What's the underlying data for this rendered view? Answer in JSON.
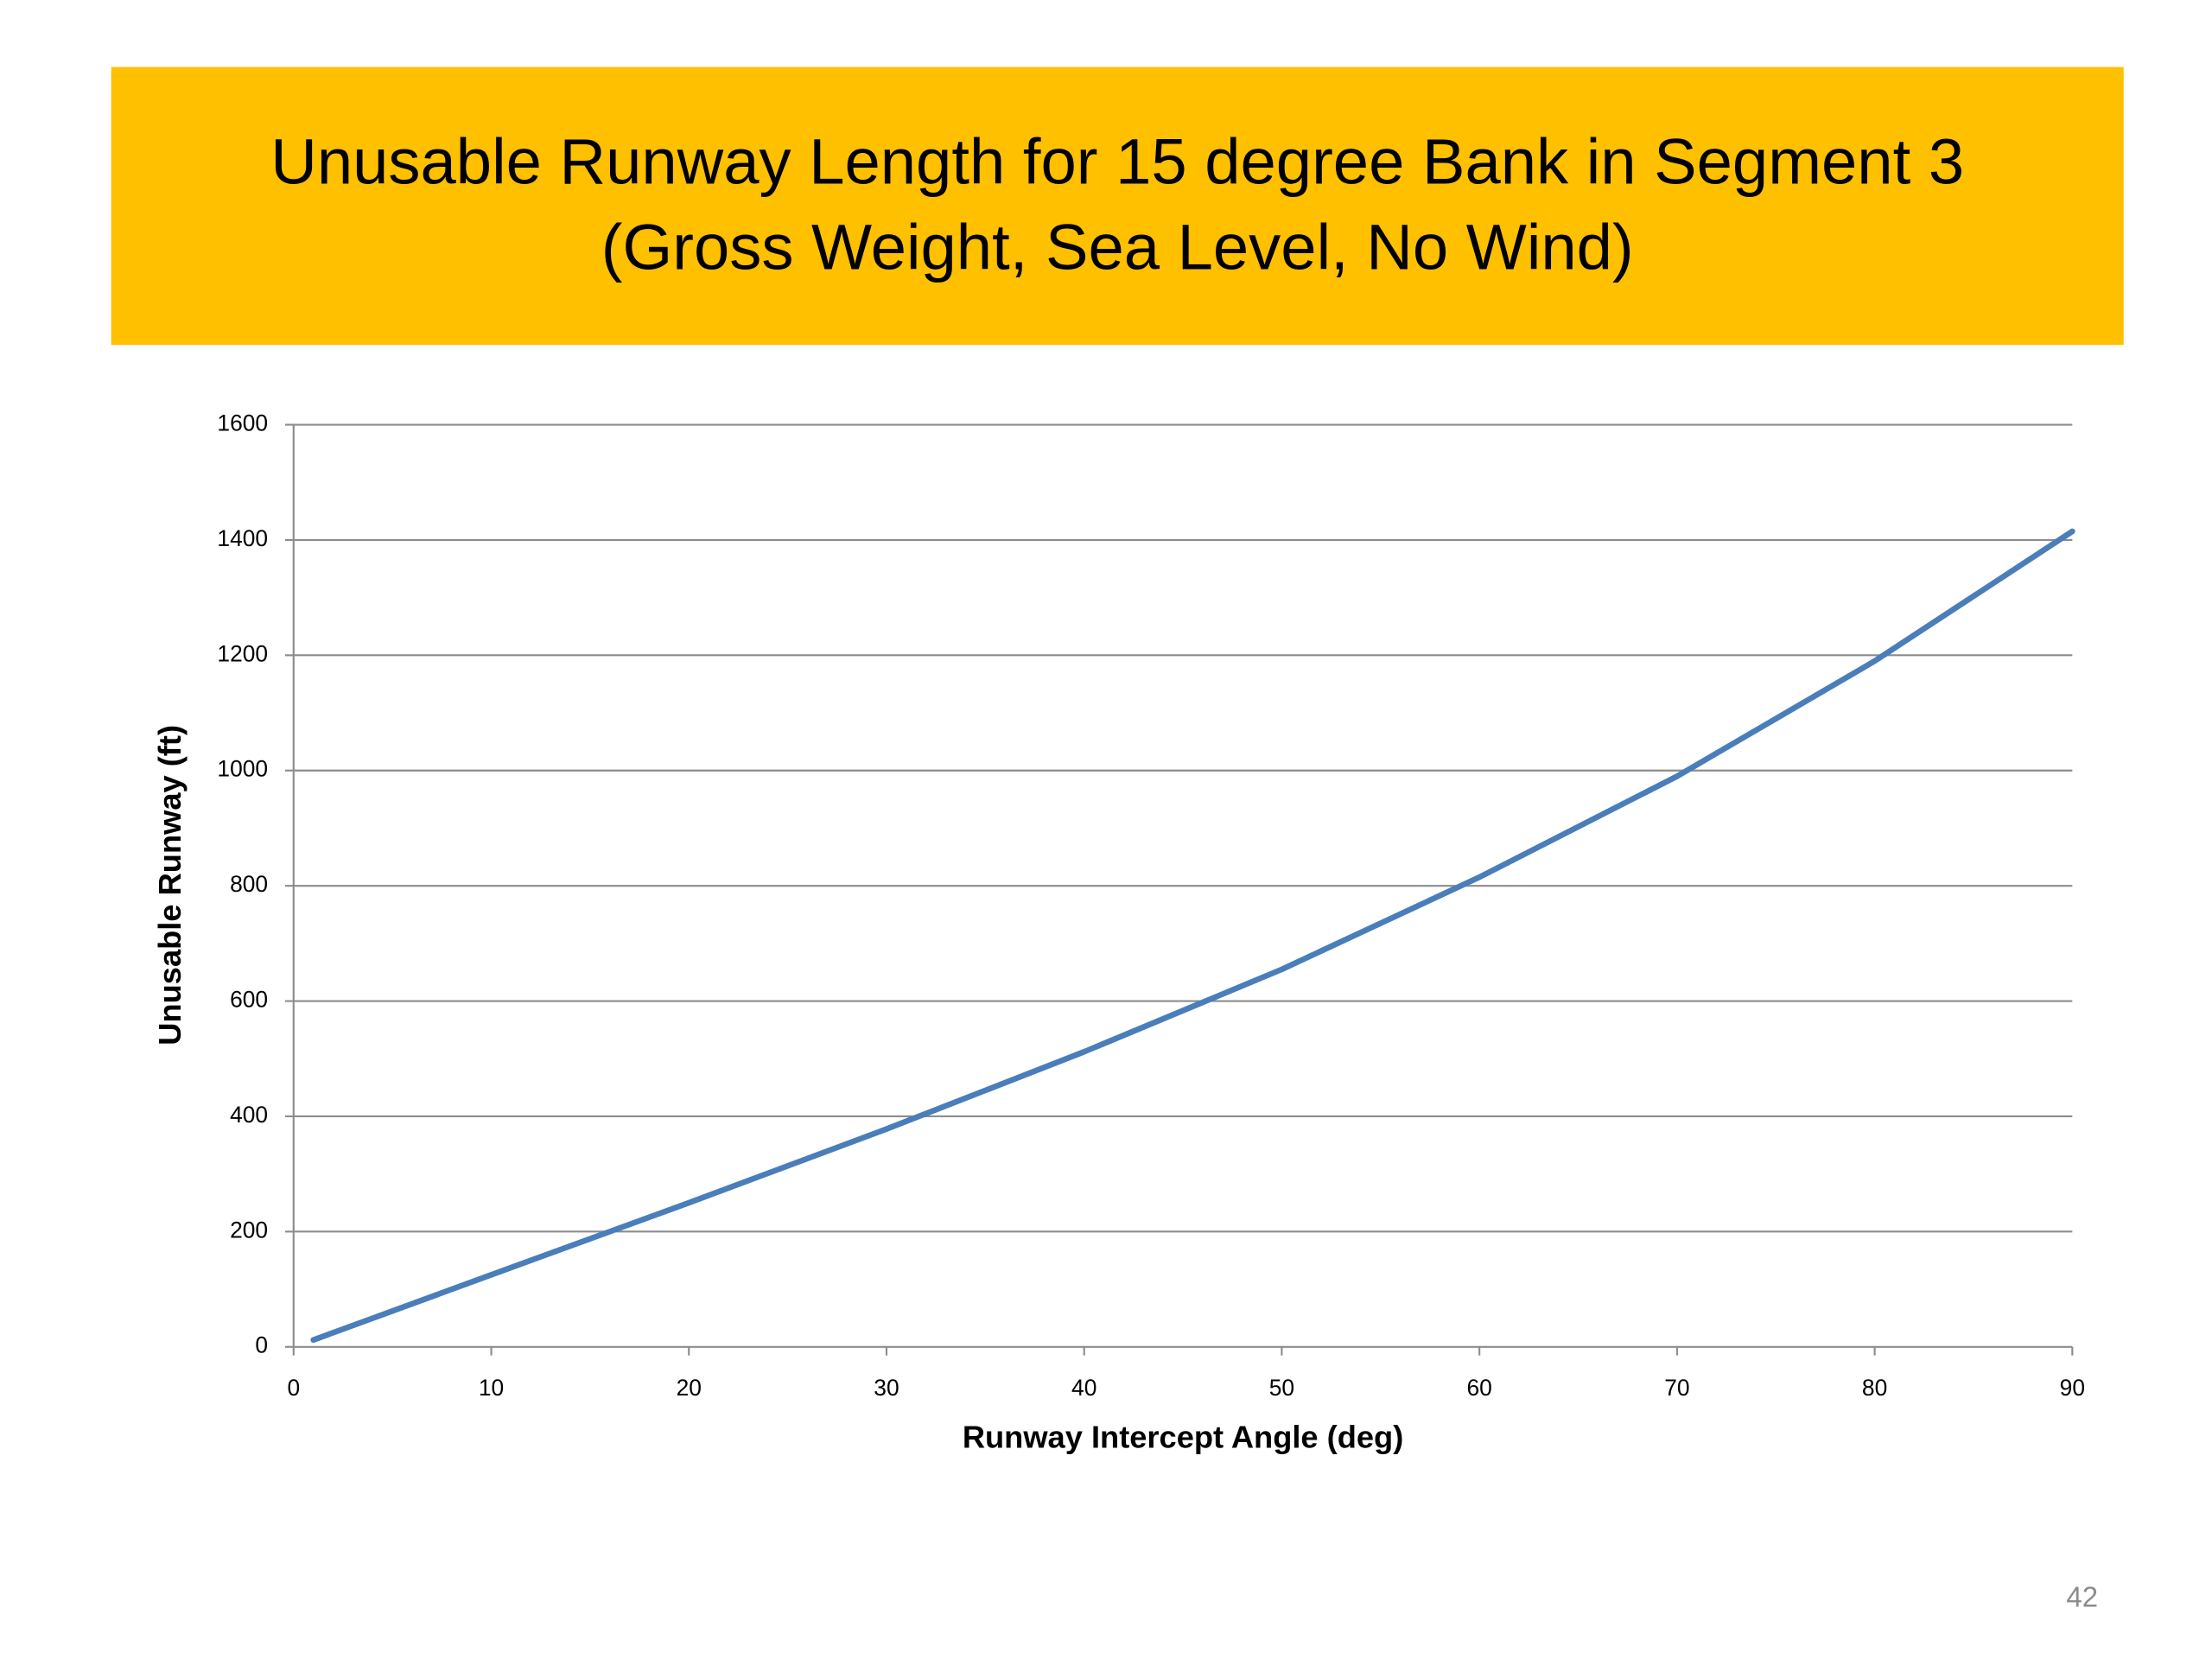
{
  "chart_data": {
    "type": "line",
    "title": [
      "Unusable Runway Length for 15 degree Bank in Segment 3",
      "(Gross Weight, Sea Level, No Wind)"
    ],
    "x_label": "Runway Intercept Angle (deg)",
    "y_label": "Unusable Runway (ft)",
    "x": [
      1,
      10,
      20,
      30,
      40,
      50,
      60,
      70,
      80,
      90
    ],
    "series": [
      {
        "color": "#4a7ebb",
        "values": [
          12,
          125,
          250,
          378,
          512,
          655,
          815,
          990,
          1190,
          1415
        ]
      }
    ],
    "xlim": [
      0,
      90
    ],
    "xticks": [
      0,
      10,
      20,
      30,
      40,
      50,
      60,
      70,
      80,
      90
    ],
    "ylim": [
      0,
      1600
    ],
    "yticks": [
      0,
      200,
      400,
      600,
      800,
      1000,
      1200,
      1400,
      1600
    ],
    "grid": true
  },
  "page_number": "42"
}
